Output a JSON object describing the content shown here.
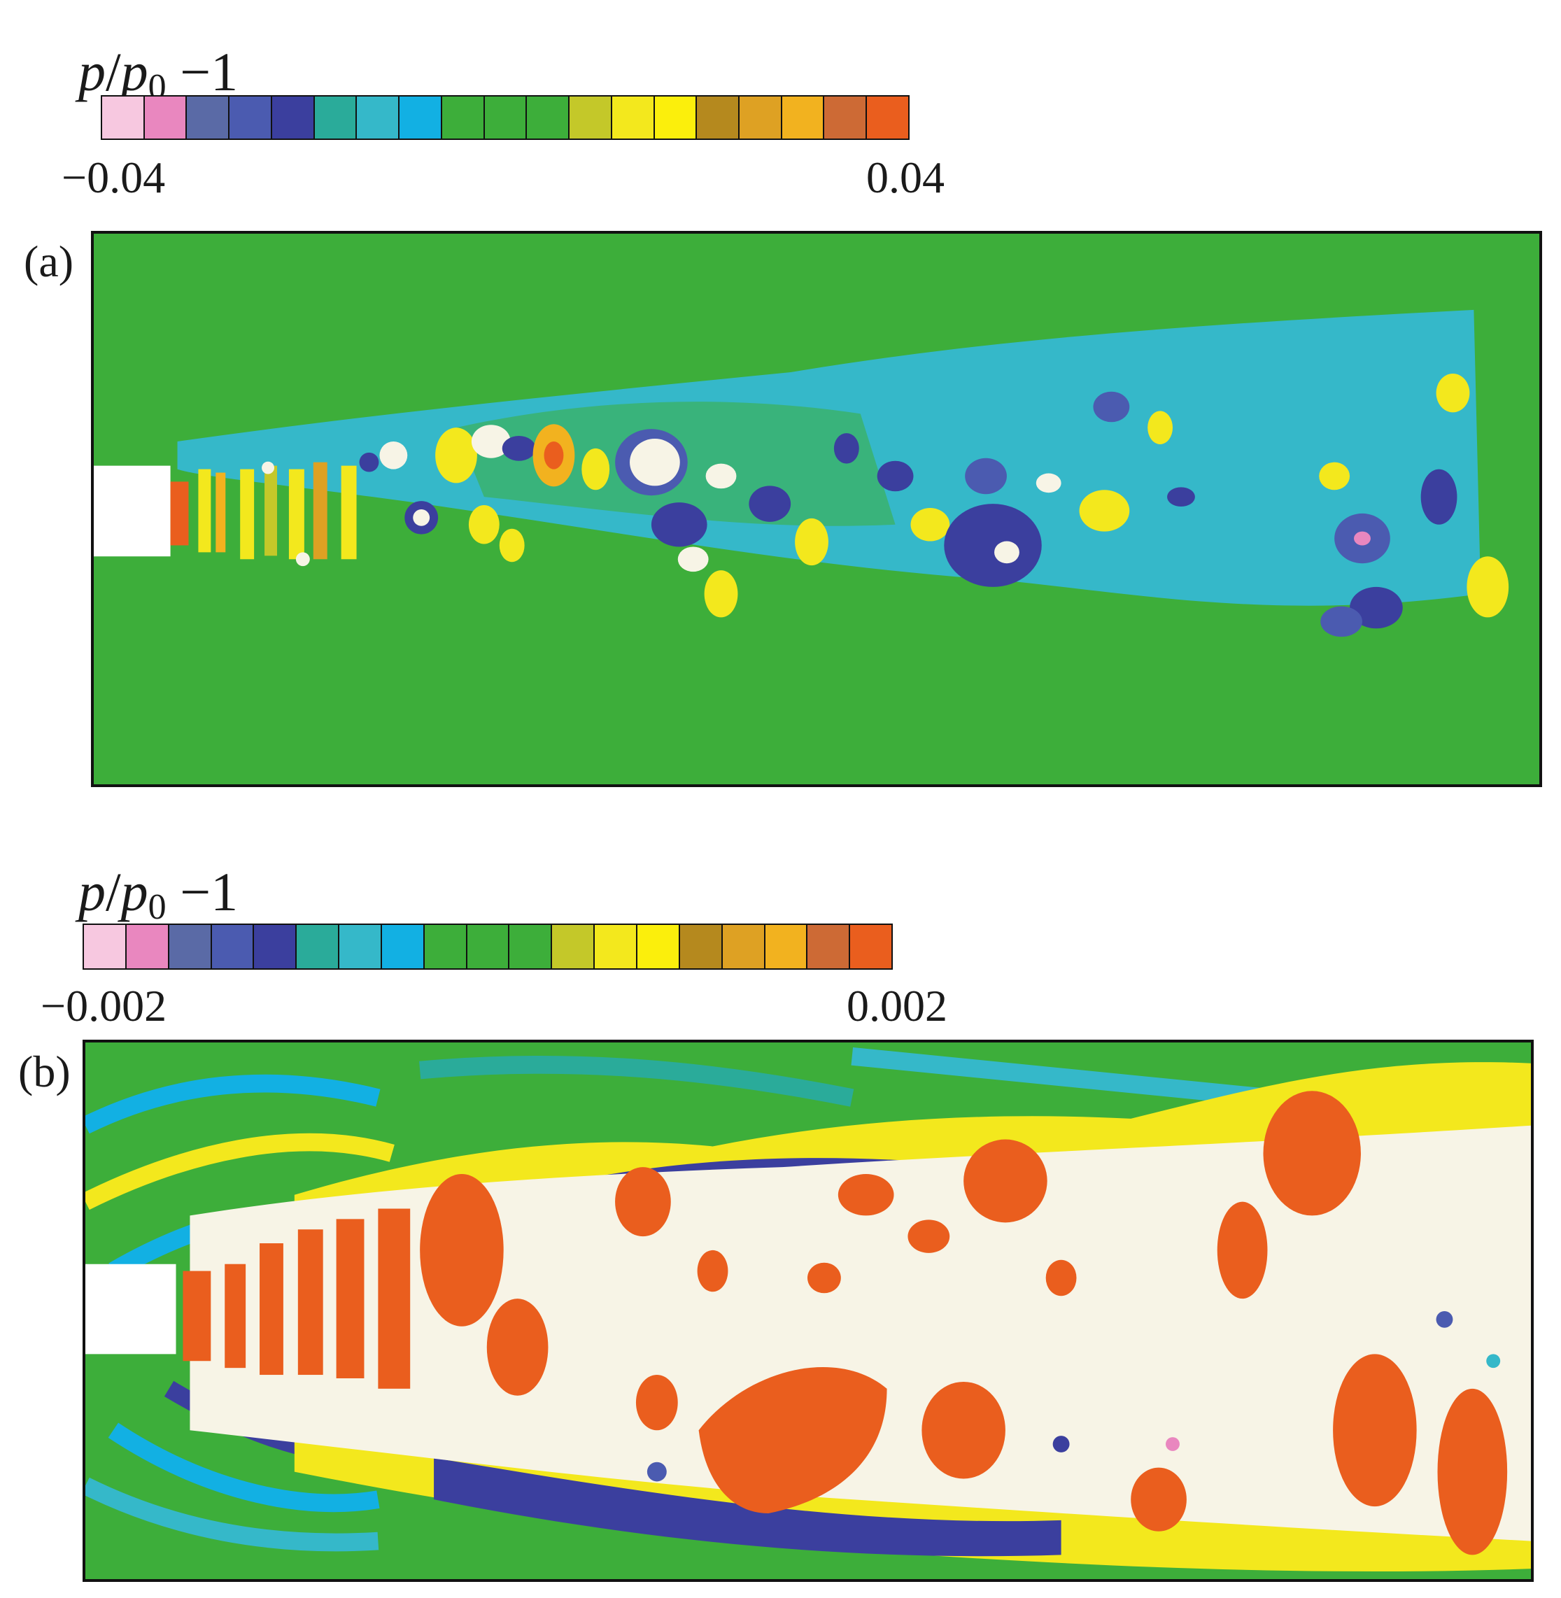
{
  "figure": {
    "panels": [
      {
        "id": "a",
        "label": "(a)",
        "colorbar": {
          "title": {
            "var": "p",
            "ref": "p",
            "sub": "0",
            "rest": " −1"
          },
          "min_label": "−0.04",
          "max_label": "0.04",
          "range": [
            -0.04,
            0.04
          ]
        }
      },
      {
        "id": "b",
        "label": "(b)",
        "colorbar": {
          "title": {
            "var": "p",
            "ref": "p",
            "sub": "0",
            "rest": " −1"
          },
          "min_label": "−0.002",
          "max_label": "0.002",
          "range": [
            -0.002,
            0.002
          ]
        }
      }
    ],
    "colormap": [
      "#f7c8e0",
      "#e987bf",
      "#5a6aa6",
      "#4b5bb0",
      "#3b3f9e",
      "#2aab9a",
      "#35b8c9",
      "#12b0e3",
      "#3dae3a",
      "#3dae3a",
      "#3dae3a",
      "#c4c829",
      "#f3e81d",
      "#fbef0c",
      "#b5891e",
      "#dea123",
      "#f2b21f",
      "#cd6a35",
      "#ea5e1e"
    ],
    "background_colors": {
      "ambient": "#3dae3a",
      "saturated_low": "#f7f4e6",
      "nozzle": "#ffffff"
    }
  }
}
